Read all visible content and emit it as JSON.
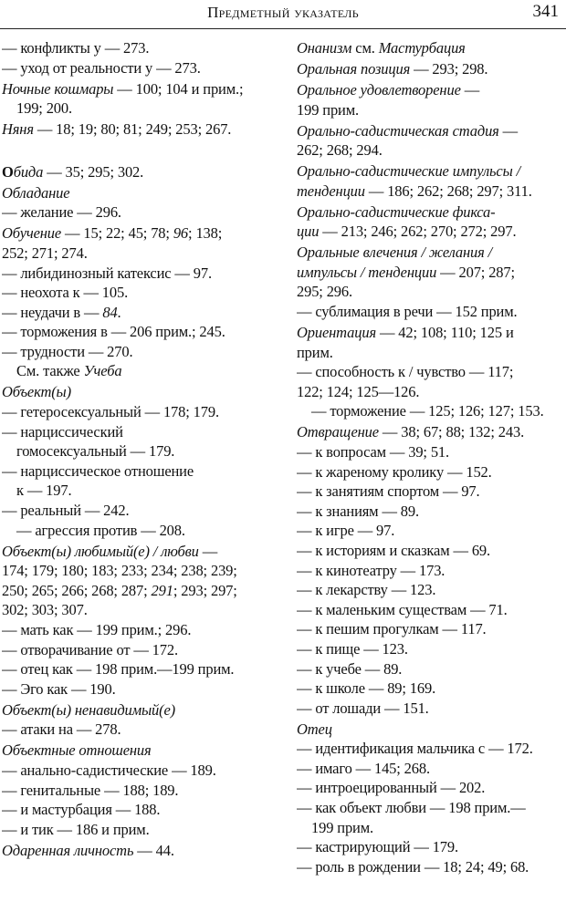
{
  "header": {
    "title": "Предметный указатель",
    "page": "341"
  },
  "left": [
    {
      "lines": [
        [
          "— конфликты у — 273."
        ],
        [
          "— уход от реальности у — 273."
        ]
      ]
    },
    {
      "lines": [
        [
          {
            "i": "Ночные кошмары"
          },
          " — 100; 104 и прим.;"
        ],
        {
          "level": 1,
          "parts": [
            "199; 200."
          ]
        }
      ]
    },
    {
      "lines": [
        [
          {
            "i": "Няня"
          },
          " — 18; 19; 80; 81; 249; 253; 267."
        ]
      ]
    },
    {
      "section_break": true,
      "lines": [
        [
          {
            "b": "О"
          },
          {
            "i": "бида"
          },
          " — 35; 295; 302."
        ]
      ]
    },
    {
      "lines": [
        [
          {
            "i": "Обладание"
          }
        ],
        [
          "— желание — 296."
        ]
      ]
    },
    {
      "lines": [
        [
          {
            "i": "Обучение"
          },
          " — 15; 22; 45; 78; ",
          {
            "i": "96"
          },
          "; 138;"
        ],
        [
          "252; 271; 274."
        ],
        [
          "— либидинозный катексис — 97."
        ],
        [
          "— неохота к — 105."
        ],
        [
          "— неудачи в — ",
          {
            "i": "84"
          },
          "."
        ],
        [
          "— торможения в — 206 прим.; 245."
        ],
        [
          "— трудности — 270."
        ],
        {
          "level": 1,
          "parts": [
            "См. также ",
            {
              "i": "Учеба"
            }
          ]
        }
      ]
    },
    {
      "lines": [
        [
          {
            "i": "Объект(ы)"
          }
        ],
        [
          "— гетеросексуальный — 178; 179."
        ],
        [
          "— нарциссический"
        ],
        {
          "level": 1,
          "parts": [
            "гомосексуальный — 179."
          ]
        },
        [
          "— нарциссическое отношение"
        ],
        {
          "level": 1,
          "parts": [
            "к — 197."
          ]
        },
        [
          "— реальный — 242."
        ],
        {
          "level": 1,
          "parts": [
            "— агрессия против — 208."
          ]
        }
      ]
    },
    {
      "lines": [
        [
          {
            "i": "Объект(ы) любимый(е) / любви"
          },
          " —"
        ],
        [
          "174; 179; 180; 183; 233; 234; 238; 239;"
        ],
        [
          "250; 265; 266; 268; 287; ",
          {
            "i": "291"
          },
          "; 293; 297;"
        ],
        [
          "302; 303; 307."
        ],
        [
          "— мать как — 199 прим.; 296."
        ],
        [
          "— отворачивание от — 172."
        ],
        [
          "— отец как — 198 прим.—199 прим."
        ],
        [
          "— Эго как — 190."
        ]
      ]
    },
    {
      "lines": [
        [
          {
            "i": "Объект(ы) ненавидимый(е)"
          }
        ],
        [
          "— атаки на — 278."
        ]
      ]
    },
    {
      "lines": [
        [
          {
            "i": "Объектные отношения"
          }
        ],
        [
          "— анально-садистические — 189."
        ],
        [
          "— генитальные — 188; 189."
        ],
        [
          "— и мастурбация — 188."
        ],
        [
          "— и тик — 186 и прим."
        ]
      ]
    },
    {
      "lines": [
        [
          {
            "i": "Одаренная личность"
          },
          " — 44."
        ]
      ]
    }
  ],
  "right": [
    {
      "lines": [
        [
          {
            "i": "Онанизм"
          },
          " см. ",
          {
            "i": "Мастурбация"
          }
        ]
      ]
    },
    {
      "lines": [
        [
          {
            "i": "Оральная позиция"
          },
          " — 293; 298."
        ]
      ]
    },
    {
      "lines": [
        [
          {
            "i": "Оральное удовлетворение"
          },
          " —"
        ],
        [
          "199 прим."
        ]
      ]
    },
    {
      "lines": [
        [
          {
            "i": "Орально-садистическая стадия"
          },
          " —"
        ],
        [
          "262; 268; 294."
        ]
      ]
    },
    {
      "lines": [
        [
          {
            "i": "Орально-садистические импульсы /"
          }
        ],
        [
          {
            "i": "тенденции"
          },
          " — 186; 262; 268; 297; 311."
        ]
      ]
    },
    {
      "lines": [
        [
          {
            "i": "Орально-садистические фикса-"
          }
        ],
        [
          {
            "i": "ции"
          },
          " — 213; 246; 262; 270; 272; 297."
        ]
      ]
    },
    {
      "lines": [
        [
          {
            "i": "Оральные влечения / желания /"
          }
        ],
        [
          {
            "i": "импульсы / тенденции"
          },
          " — 207; 287;"
        ],
        [
          "295; 296."
        ],
        [
          "— сублимация в речи — 152 прим."
        ]
      ]
    },
    {
      "lines": [
        [
          {
            "i": "Ориентация"
          },
          " — 42; 108; 110; 125 и"
        ],
        [
          "прим."
        ],
        [
          "— способность к / чувство — 117;"
        ],
        [
          "122; 124; 125—126."
        ],
        {
          "level": 1,
          "parts": [
            "— торможение — 125; 126; 127; 153."
          ]
        }
      ]
    },
    {
      "lines": [
        [
          {
            "i": "Отвращение"
          },
          " — 38; 67; 88; 132; 243."
        ],
        [
          "— к вопросам — 39; 51."
        ],
        [
          "— к жареному кролику — 152."
        ],
        [
          "— к занятиям спортом — 97."
        ],
        [
          "— к знаниям — 89."
        ],
        [
          "— к игре — 97."
        ],
        [
          "— к историям и сказкам — 69."
        ],
        [
          "— к кинотеатру — 173."
        ],
        [
          "— к лекарству — 123."
        ],
        [
          "— к маленьким существам — 71."
        ],
        [
          "— к пешим прогулкам — 117."
        ],
        [
          "— к пище — 123."
        ],
        [
          "— к учебе — 89."
        ],
        [
          "— к школе — 89; 169."
        ],
        [
          "— от лошади — 151."
        ]
      ]
    },
    {
      "lines": [
        [
          {
            "i": "Отец"
          }
        ],
        [
          "— идентификация мальчика с — 172."
        ],
        [
          "— имаго — 145; 268."
        ],
        [
          "— интроецированный — 202."
        ],
        [
          "— как объект любви — 198 прим.—"
        ],
        {
          "level": 1,
          "parts": [
            "199 прим."
          ]
        },
        [
          "— кастрирующий — 179."
        ],
        [
          "— роль в рождении — 18; 24; 49; 68."
        ]
      ]
    }
  ]
}
